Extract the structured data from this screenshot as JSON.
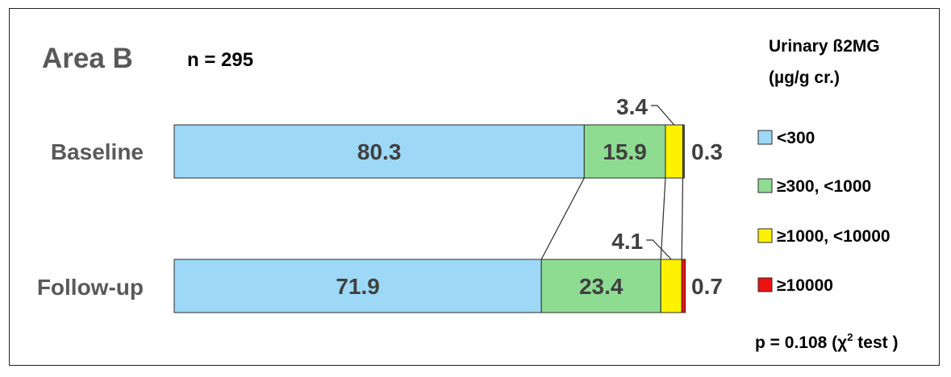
{
  "chart_data": {
    "type": "bar",
    "orientation": "horizontal",
    "stacked": true,
    "title": "Area B",
    "subtitle": "n = 295",
    "categories": [
      "Baseline",
      "Follow-up"
    ],
    "series": [
      {
        "name": "<300",
        "color": "#9DD9F6",
        "values": [
          80.3,
          71.9
        ]
      },
      {
        "name": "≥300, <1000",
        "color": "#8EDC92",
        "values": [
          15.9,
          23.4
        ]
      },
      {
        "name": "≥1000, <10000",
        "color": "#FFF200",
        "values": [
          3.4,
          4.1
        ]
      },
      {
        "name": "≥10000",
        "color": "#EE1111",
        "values": [
          0.3,
          0.7
        ]
      }
    ],
    "data_labels": [
      [
        "80.3",
        "15.9",
        "3.4",
        "0.3"
      ],
      [
        "71.9",
        "23.4",
        "4.1",
        "0.7"
      ]
    ],
    "legend": {
      "title_line1": "Urinary ß2MG",
      "title_line2": "(µg/g cr.)",
      "position": "right"
    },
    "annotation": {
      "text_prefix": "p = 0.108 (",
      "chi": "χ",
      "sup": "2",
      "text_suffix": " test )"
    },
    "xlim": [
      0,
      100
    ],
    "grid": false
  }
}
